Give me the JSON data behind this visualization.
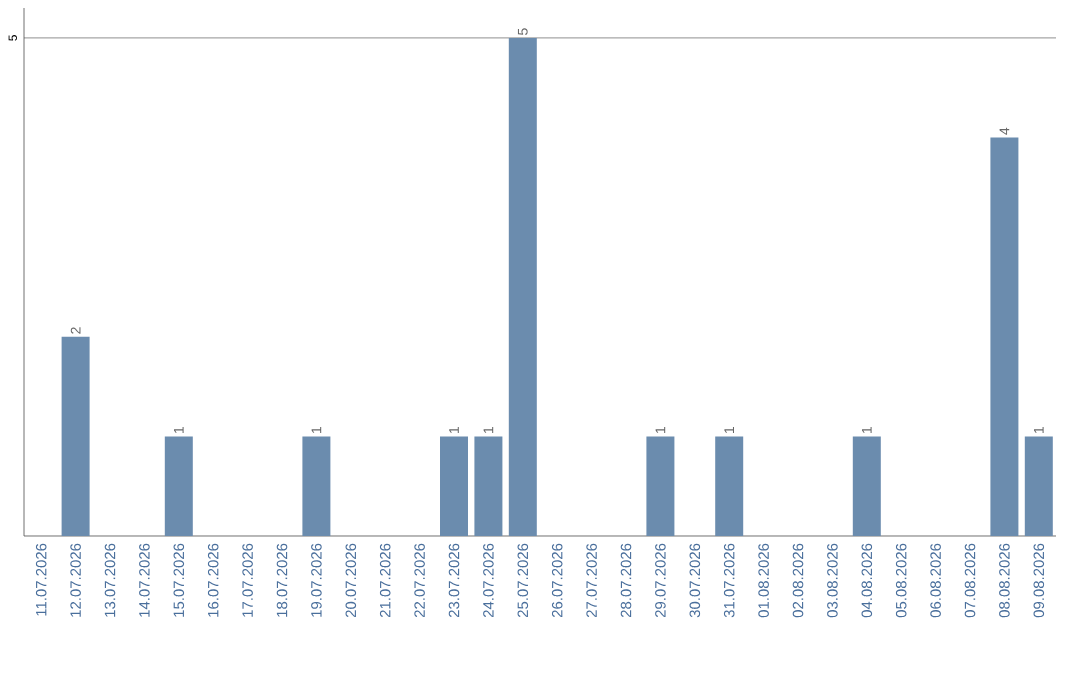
{
  "chart_data": {
    "type": "bar",
    "categories": [
      "11.07.2026",
      "12.07.2026",
      "13.07.2026",
      "14.07.2026",
      "15.07.2026",
      "16.07.2026",
      "17.07.2026",
      "18.07.2026",
      "19.07.2026",
      "20.07.2026",
      "21.07.2026",
      "22.07.2026",
      "23.07.2026",
      "24.07.2026",
      "25.07.2026",
      "26.07.2026",
      "27.07.2026",
      "28.07.2026",
      "29.07.2026",
      "30.07.2026",
      "31.07.2026",
      "01.08.2026",
      "02.08.2026",
      "03.08.2026",
      "04.08.2026",
      "05.08.2026",
      "06.08.2026",
      "07.08.2026",
      "08.08.2026",
      "09.08.2026"
    ],
    "values": [
      0,
      2,
      0,
      0,
      1,
      0,
      0,
      0,
      1,
      0,
      0,
      0,
      1,
      1,
      5,
      0,
      0,
      0,
      1,
      0,
      1,
      0,
      0,
      0,
      1,
      0,
      0,
      0,
      4,
      1
    ],
    "value_labels": [
      null,
      "2",
      null,
      null,
      "1",
      null,
      null,
      null,
      "1",
      null,
      null,
      null,
      "1",
      "1",
      "5",
      null,
      null,
      null,
      "1",
      null,
      "1",
      null,
      null,
      null,
      "1",
      null,
      null,
      null,
      "4",
      "1"
    ],
    "color": "#6b8cae",
    "ylim": [
      0,
      5.3
    ],
    "yticks": [
      5
    ],
    "grid": "y"
  }
}
